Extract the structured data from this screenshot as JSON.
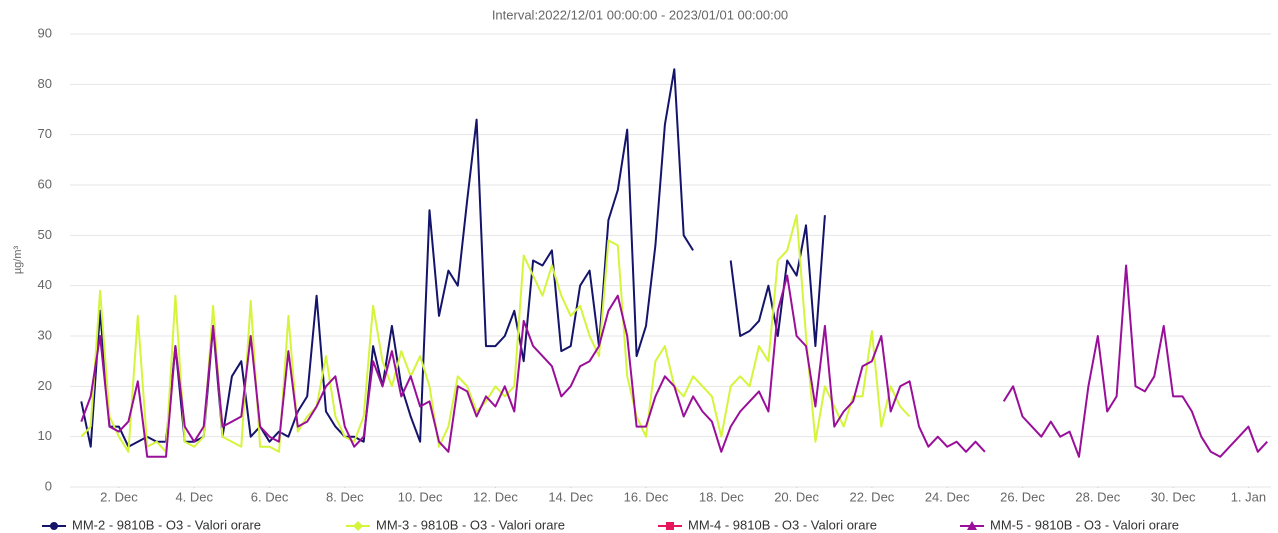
{
  "chart_data": {
    "type": "line",
    "title": "Interval:2022/12/01 00:00:00 - 2023/01/01 00:00:00",
    "y_label": "µg/m³",
    "xlim": [
      0.7,
      32.6
    ],
    "ylim": [
      0,
      90
    ],
    "yticks": [
      0,
      10,
      20,
      30,
      40,
      50,
      60,
      70,
      80,
      90
    ],
    "xticks": [
      {
        "value": 2,
        "label": "2. Dec"
      },
      {
        "value": 4,
        "label": "4. Dec"
      },
      {
        "value": 6,
        "label": "6. Dec"
      },
      {
        "value": 8,
        "label": "8. Dec"
      },
      {
        "value": 10,
        "label": "10. Dec"
      },
      {
        "value": 12,
        "label": "12. Dec"
      },
      {
        "value": 14,
        "label": "14. Dec"
      },
      {
        "value": 16,
        "label": "16. Dec"
      },
      {
        "value": 18,
        "label": "18. Dec"
      },
      {
        "value": 20,
        "label": "20. Dec"
      },
      {
        "value": 22,
        "label": "22. Dec"
      },
      {
        "value": 24,
        "label": "24. Dec"
      },
      {
        "value": 26,
        "label": "26. Dec"
      },
      {
        "value": 28,
        "label": "28. Dec"
      },
      {
        "value": 30,
        "label": "30. Dec"
      },
      {
        "value": 32,
        "label": "1. Jan"
      }
    ],
    "grid": true,
    "legend": "bottom",
    "x": [
      1,
      1.25,
      1.5,
      1.75,
      2,
      2.25,
      2.5,
      2.75,
      3,
      3.25,
      3.5,
      3.75,
      4,
      4.25,
      4.5,
      4.75,
      5,
      5.25,
      5.5,
      5.75,
      6,
      6.25,
      6.5,
      6.75,
      7,
      7.25,
      7.5,
      7.75,
      8,
      8.25,
      8.5,
      8.75,
      9,
      9.25,
      9.5,
      9.75,
      10,
      10.25,
      10.5,
      10.75,
      11,
      11.25,
      11.5,
      11.75,
      12,
      12.25,
      12.5,
      12.75,
      13,
      13.25,
      13.5,
      13.75,
      14,
      14.25,
      14.5,
      14.75,
      15,
      15.25,
      15.5,
      15.75,
      16,
      16.25,
      16.5,
      16.75,
      17,
      17.25,
      17.5,
      17.75,
      18,
      18.25,
      18.5,
      18.75,
      19,
      19.25,
      19.5,
      19.75,
      20,
      20.25,
      20.5,
      20.75,
      21,
      21.25,
      21.5,
      21.75,
      22,
      22.25,
      22.5,
      22.75,
      23,
      23.25,
      23.5,
      23.75,
      24,
      24.25,
      24.5,
      24.75,
      25,
      25.25,
      25.5,
      25.75,
      26,
      26.25,
      26.5,
      26.75,
      27,
      27.25,
      27.5,
      27.75,
      28,
      28.25,
      28.5,
      28.75,
      29,
      29.25,
      29.5,
      29.75,
      30,
      30.25,
      30.5,
      30.75,
      31,
      31.25,
      31.5,
      31.75,
      32,
      32.25,
      32.5
    ],
    "series": [
      {
        "name": "MM-2 - 9810B - O3 - Valori orare",
        "color": "#14146b",
        "marker": "circle",
        "values": [
          17,
          8,
          35,
          12,
          12,
          8,
          9,
          10,
          9,
          9,
          28,
          9,
          9,
          10,
          32,
          10,
          22,
          25,
          10,
          12,
          9,
          11,
          10,
          15,
          18,
          38,
          15,
          12,
          10,
          10,
          9,
          28,
          20,
          32,
          20,
          14,
          9,
          55,
          34,
          43,
          40,
          57,
          73,
          28,
          28,
          30,
          35,
          25,
          45,
          44,
          47,
          27,
          28,
          40,
          43,
          28,
          53,
          59,
          71,
          26,
          32,
          48,
          72,
          83,
          50,
          47,
          null,
          null,
          null,
          45,
          30,
          31,
          33,
          40,
          30,
          45,
          42,
          52,
          28,
          54,
          null,
          null,
          null,
          null,
          null,
          null,
          null,
          null,
          null,
          null,
          null,
          null,
          null,
          null,
          null,
          null,
          null,
          null,
          null,
          null,
          null,
          null,
          null,
          null,
          null,
          null,
          null,
          null,
          null,
          null,
          null,
          null,
          null,
          null,
          null,
          null,
          null,
          null,
          null,
          null,
          null,
          null,
          null,
          null,
          null,
          null,
          null
        ]
      },
      {
        "name": "MM-3 - 9810B - O3 - Valori orare",
        "color": "#d4f53c",
        "marker": "diamond",
        "values": [
          10,
          12,
          39,
          14,
          10,
          7,
          34,
          8,
          9,
          7,
          38,
          9,
          8,
          10,
          36,
          10,
          9,
          8,
          37,
          8,
          8,
          7,
          34,
          11,
          14,
          16,
          26,
          14,
          10,
          9,
          14,
          36,
          25,
          20,
          27,
          22,
          26,
          20,
          8,
          12,
          22,
          20,
          15,
          17,
          20,
          18,
          20,
          46,
          42,
          38,
          44,
          38,
          34,
          36,
          30,
          26,
          49,
          48,
          22,
          14,
          10,
          25,
          28,
          20,
          18,
          22,
          20,
          18,
          10,
          20,
          22,
          20,
          28,
          25,
          45,
          47,
          54,
          30,
          9,
          20,
          16,
          12,
          18,
          18,
          31,
          12,
          20,
          16,
          14,
          null,
          null,
          null,
          null,
          null,
          null,
          null,
          null,
          null,
          null,
          null,
          null,
          null,
          null,
          null,
          null,
          null,
          null,
          null,
          null,
          null,
          null,
          null,
          null,
          null,
          null,
          null,
          null,
          null,
          null,
          null,
          null,
          null,
          null,
          null,
          null,
          null,
          null
        ]
      },
      {
        "name": "MM-4 - 9810B - O3 - Valori orare",
        "color": "#e8175d",
        "marker": "square",
        "values": [
          null,
          null,
          null,
          null,
          null,
          null,
          null,
          null,
          null,
          null,
          null,
          null,
          null,
          null,
          null,
          null,
          null,
          null,
          null,
          null,
          null,
          null,
          null,
          null,
          null,
          null,
          null,
          null,
          null,
          null,
          null,
          null,
          null,
          null,
          null,
          null,
          null,
          null,
          null,
          null,
          null,
          null,
          null,
          null,
          null,
          null,
          null,
          null,
          null,
          null,
          null,
          null,
          null,
          null,
          null,
          null,
          null,
          null,
          null,
          null,
          null,
          null,
          null,
          null,
          null,
          null,
          null,
          null,
          null,
          null,
          null,
          null,
          null,
          null,
          null,
          null,
          null,
          null,
          null,
          null,
          null,
          null,
          null,
          null,
          null,
          null,
          null,
          null,
          null,
          null,
          null,
          null,
          null,
          null,
          null,
          null,
          null,
          null,
          null,
          null,
          null,
          null,
          null,
          null,
          null,
          null,
          null,
          null,
          null,
          null,
          null,
          null,
          null,
          null,
          null,
          null,
          null,
          null,
          null,
          null,
          null,
          null,
          null,
          null,
          null,
          null,
          null
        ]
      },
      {
        "name": "MM-5 - 9810B - O3 - Valori orare",
        "color": "#9a0f9a",
        "marker": "triangle",
        "values": [
          13,
          18,
          30,
          12,
          11,
          13,
          21,
          6,
          6,
          6,
          28,
          12,
          9,
          12,
          32,
          12,
          13,
          14,
          30,
          12,
          10,
          9,
          27,
          12,
          13,
          16,
          20,
          22,
          12,
          8,
          10,
          25,
          20,
          27,
          18,
          22,
          16,
          17,
          9,
          7,
          20,
          19,
          14,
          18,
          16,
          20,
          15,
          33,
          28,
          26,
          24,
          18,
          20,
          24,
          25,
          28,
          35,
          38,
          30,
          12,
          12,
          18,
          22,
          20,
          14,
          18,
          15,
          13,
          7,
          12,
          15,
          17,
          19,
          15,
          35,
          42,
          30,
          28,
          16,
          32,
          12,
          15,
          17,
          24,
          25,
          30,
          15,
          20,
          21,
          12,
          8,
          10,
          8,
          9,
          7,
          9,
          7,
          null,
          17,
          20,
          14,
          12,
          10,
          13,
          10,
          11,
          6,
          20,
          30,
          15,
          18,
          44,
          20,
          19,
          22,
          32,
          18,
          18,
          15,
          10,
          7,
          6,
          8,
          10,
          12,
          7,
          9
        ]
      }
    ]
  }
}
